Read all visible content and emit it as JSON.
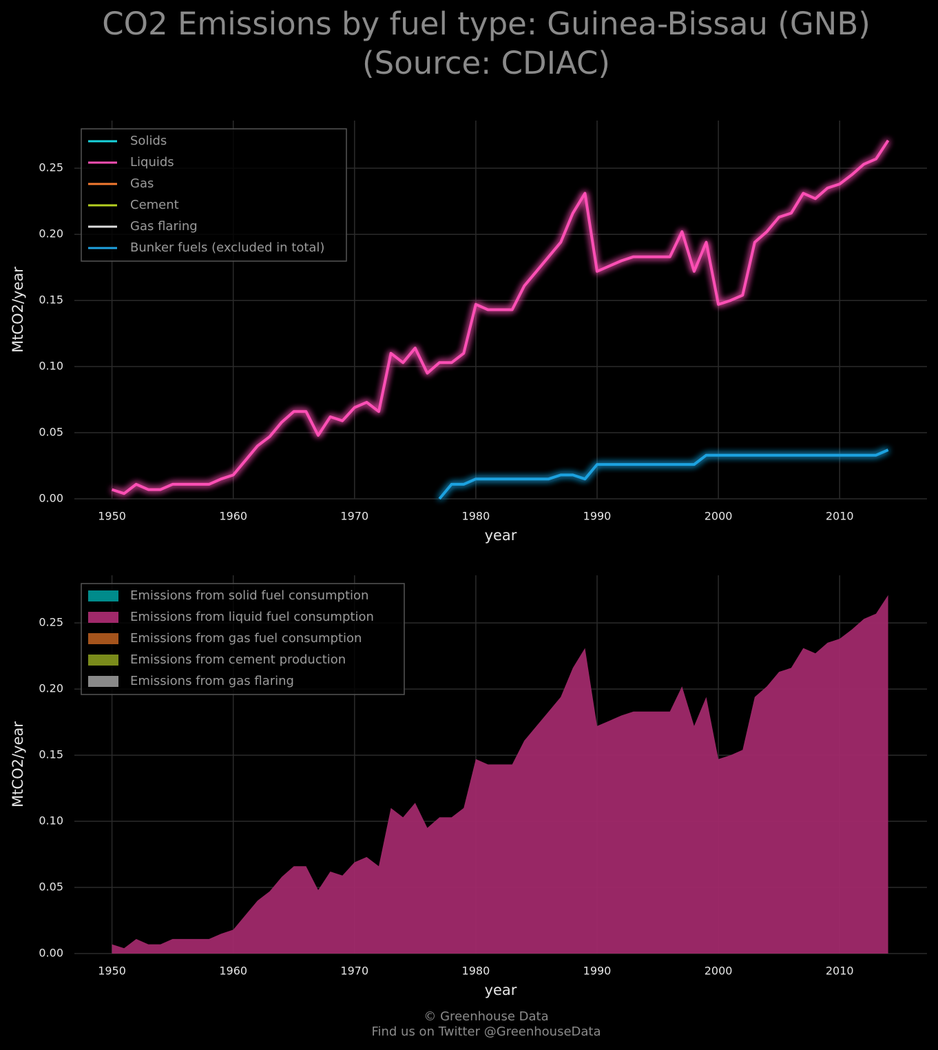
{
  "title": [
    "CO2 Emissions by fuel type: Guinea-Bissau (GNB)",
    "(Source: CDIAC)"
  ],
  "footer": [
    "© Greenhouse Data",
    "Find us on Twitter @GreenhouseData"
  ],
  "chart_data": [
    {
      "type": "line",
      "xlabel": "year",
      "ylabel": "MtCO2/year",
      "grid": true,
      "legend": "upper left",
      "xlim": [
        1946.9,
        2017.2
      ],
      "ylim": [
        0,
        0.286
      ],
      "xticks": [
        1950,
        1960,
        1970,
        1980,
        1990,
        2000,
        2010
      ],
      "yticks": [
        {
          "value": 0,
          "label": "0.00"
        },
        {
          "value": 0.05,
          "label": "0.05"
        },
        {
          "value": 0.1,
          "label": "0.10"
        },
        {
          "value": 0.15,
          "label": "0.15"
        },
        {
          "value": 0.2,
          "label": "0.20"
        },
        {
          "value": 0.25,
          "label": "0.25"
        }
      ],
      "x": [
        1950,
        1951,
        1952,
        1953,
        1954,
        1955,
        1956,
        1957,
        1958,
        1959,
        1960,
        1961,
        1962,
        1963,
        1964,
        1965,
        1966,
        1967,
        1968,
        1969,
        1970,
        1971,
        1972,
        1973,
        1974,
        1975,
        1976,
        1977,
        1978,
        1979,
        1980,
        1981,
        1982,
        1983,
        1984,
        1985,
        1986,
        1987,
        1988,
        1989,
        1990,
        1991,
        1992,
        1993,
        1994,
        1995,
        1996,
        1997,
        1998,
        1999,
        2000,
        2001,
        2002,
        2003,
        2004,
        2005,
        2006,
        2007,
        2008,
        2009,
        2010,
        2011,
        2012,
        2013,
        2014
      ],
      "series": [
        {
          "name": "Solids",
          "color": "#19d3dc",
          "values": [
            0,
            0,
            0,
            0,
            0,
            0,
            0,
            0,
            0,
            0,
            0,
            0,
            0,
            0,
            0,
            0,
            0,
            0,
            0,
            0,
            0,
            0,
            0,
            0,
            0,
            0,
            0,
            0,
            0,
            0,
            0,
            0,
            0,
            0,
            0,
            0,
            0,
            0,
            0,
            0,
            0,
            0,
            0,
            0,
            0,
            0,
            0,
            0,
            0,
            0,
            0,
            0,
            0,
            0,
            0,
            0,
            0,
            0,
            0,
            0,
            0,
            0,
            0,
            0,
            0
          ]
        },
        {
          "name": "Liquids",
          "color": "#ff4fb5",
          "values": [
            0.007,
            0.004,
            0.011,
            0.007,
            0.007,
            0.011,
            0.011,
            0.011,
            0.011,
            0.015,
            0.018,
            0.029,
            0.04,
            0.047,
            0.058,
            0.066,
            0.066,
            0.048,
            0.062,
            0.059,
            0.069,
            0.073,
            0.066,
            0.11,
            0.103,
            0.114,
            0.095,
            0.103,
            0.103,
            0.11,
            0.147,
            0.143,
            0.143,
            0.143,
            0.161,
            0.172,
            0.183,
            0.194,
            0.216,
            0.231,
            0.172,
            0.176,
            0.18,
            0.183,
            0.183,
            0.183,
            0.183,
            0.202,
            0.172,
            0.194,
            0.147,
            0.15,
            0.154,
            0.194,
            0.202,
            0.213,
            0.216,
            0.231,
            0.227,
            0.235,
            0.238,
            0.245,
            0.253,
            0.257,
            0.271
          ]
        },
        {
          "name": "Gas",
          "color": "#f47a30",
          "values": [
            0,
            0,
            0,
            0,
            0,
            0,
            0,
            0,
            0,
            0,
            0,
            0,
            0,
            0,
            0,
            0,
            0,
            0,
            0,
            0,
            0,
            0,
            0,
            0,
            0,
            0,
            0,
            0,
            0,
            0,
            0,
            0,
            0,
            0,
            0,
            0,
            0,
            0,
            0,
            0,
            0,
            0,
            0,
            0,
            0,
            0,
            0,
            0,
            0,
            0,
            0,
            0,
            0,
            0,
            0,
            0,
            0,
            0,
            0,
            0,
            0,
            0,
            0,
            0,
            0
          ]
        },
        {
          "name": "Cement",
          "color": "#b5cf20",
          "values": [
            0,
            0,
            0,
            0,
            0,
            0,
            0,
            0,
            0,
            0,
            0,
            0,
            0,
            0,
            0,
            0,
            0,
            0,
            0,
            0,
            0,
            0,
            0,
            0,
            0,
            0,
            0,
            0,
            0,
            0,
            0,
            0,
            0,
            0,
            0,
            0,
            0,
            0,
            0,
            0,
            0,
            0,
            0,
            0,
            0,
            0,
            0,
            0,
            0,
            0,
            0,
            0,
            0,
            0,
            0,
            0,
            0,
            0,
            0,
            0,
            0,
            0,
            0,
            0,
            0
          ]
        },
        {
          "name": "Gas flaring",
          "color": "#dddddd",
          "values": [
            0,
            0,
            0,
            0,
            0,
            0,
            0,
            0,
            0,
            0,
            0,
            0,
            0,
            0,
            0,
            0,
            0,
            0,
            0,
            0,
            0,
            0,
            0,
            0,
            0,
            0,
            0,
            0,
            0,
            0,
            0,
            0,
            0,
            0,
            0,
            0,
            0,
            0,
            0,
            0,
            0,
            0,
            0,
            0,
            0,
            0,
            0,
            0,
            0,
            0,
            0,
            0,
            0,
            0,
            0,
            0,
            0,
            0,
            0,
            0,
            0,
            0,
            0,
            0,
            0
          ]
        },
        {
          "name": "Bunker fuels (excluded in total)",
          "color": "#1fa2e0",
          "values": [
            null,
            null,
            null,
            null,
            null,
            null,
            null,
            null,
            null,
            null,
            null,
            null,
            null,
            null,
            null,
            null,
            null,
            null,
            null,
            null,
            null,
            null,
            null,
            null,
            null,
            null,
            null,
            0,
            0.011,
            0.011,
            0.015,
            0.015,
            0.015,
            0.015,
            0.015,
            0.015,
            0.015,
            0.018,
            0.018,
            0.015,
            0.026,
            0.026,
            0.026,
            0.026,
            0.026,
            0.026,
            0.026,
            0.026,
            0.026,
            0.033,
            0.033,
            0.033,
            0.033,
            0.033,
            0.033,
            0.033,
            0.033,
            0.033,
            0.033,
            0.033,
            0.033,
            0.033,
            0.033,
            0.033,
            0.037
          ]
        }
      ]
    },
    {
      "type": "area",
      "xlabel": "year",
      "ylabel": "MtCO2/year",
      "grid": true,
      "legend": "upper left",
      "stacked": true,
      "xlim": [
        1946.9,
        2017.2
      ],
      "ylim": [
        0,
        0.286
      ],
      "xticks": [
        1950,
        1960,
        1970,
        1980,
        1990,
        2000,
        2010
      ],
      "yticks": [
        {
          "value": 0,
          "label": "0.00"
        },
        {
          "value": 0.05,
          "label": "0.05"
        },
        {
          "value": 0.1,
          "label": "0.10"
        },
        {
          "value": 0.15,
          "label": "0.15"
        },
        {
          "value": 0.2,
          "label": "0.20"
        },
        {
          "value": 0.25,
          "label": "0.25"
        }
      ],
      "x": [
        1950,
        1951,
        1952,
        1953,
        1954,
        1955,
        1956,
        1957,
        1958,
        1959,
        1960,
        1961,
        1962,
        1963,
        1964,
        1965,
        1966,
        1967,
        1968,
        1969,
        1970,
        1971,
        1972,
        1973,
        1974,
        1975,
        1976,
        1977,
        1978,
        1979,
        1980,
        1981,
        1982,
        1983,
        1984,
        1985,
        1986,
        1987,
        1988,
        1989,
        1990,
        1991,
        1992,
        1993,
        1994,
        1995,
        1996,
        1997,
        1998,
        1999,
        2000,
        2001,
        2002,
        2003,
        2004,
        2005,
        2006,
        2007,
        2008,
        2009,
        2010,
        2011,
        2012,
        2013,
        2014
      ],
      "series": [
        {
          "name": "Emissions from solid fuel consumption",
          "color": "#008b8b",
          "values": [
            0,
            0,
            0,
            0,
            0,
            0,
            0,
            0,
            0,
            0,
            0,
            0,
            0,
            0,
            0,
            0,
            0,
            0,
            0,
            0,
            0,
            0,
            0,
            0,
            0,
            0,
            0,
            0,
            0,
            0,
            0,
            0,
            0,
            0,
            0,
            0,
            0,
            0,
            0,
            0,
            0,
            0,
            0,
            0,
            0,
            0,
            0,
            0,
            0,
            0,
            0,
            0,
            0,
            0,
            0,
            0,
            0,
            0,
            0,
            0,
            0,
            0,
            0,
            0,
            0
          ]
        },
        {
          "name": "Emissions from liquid fuel consumption",
          "color": "#a0296a",
          "values": [
            0.007,
            0.004,
            0.011,
            0.007,
            0.007,
            0.011,
            0.011,
            0.011,
            0.011,
            0.015,
            0.018,
            0.029,
            0.04,
            0.047,
            0.058,
            0.066,
            0.066,
            0.048,
            0.062,
            0.059,
            0.069,
            0.073,
            0.066,
            0.11,
            0.103,
            0.114,
            0.095,
            0.103,
            0.103,
            0.11,
            0.147,
            0.143,
            0.143,
            0.143,
            0.161,
            0.172,
            0.183,
            0.194,
            0.216,
            0.231,
            0.172,
            0.176,
            0.18,
            0.183,
            0.183,
            0.183,
            0.183,
            0.202,
            0.172,
            0.194,
            0.147,
            0.15,
            0.154,
            0.194,
            0.202,
            0.213,
            0.216,
            0.231,
            0.227,
            0.235,
            0.238,
            0.245,
            0.253,
            0.257,
            0.271
          ]
        },
        {
          "name": "Emissions from gas fuel consumption",
          "color": "#a5541c",
          "values": [
            0,
            0,
            0,
            0,
            0,
            0,
            0,
            0,
            0,
            0,
            0,
            0,
            0,
            0,
            0,
            0,
            0,
            0,
            0,
            0,
            0,
            0,
            0,
            0,
            0,
            0,
            0,
            0,
            0,
            0,
            0,
            0,
            0,
            0,
            0,
            0,
            0,
            0,
            0,
            0,
            0,
            0,
            0,
            0,
            0,
            0,
            0,
            0,
            0,
            0,
            0,
            0,
            0,
            0,
            0,
            0,
            0,
            0,
            0,
            0,
            0,
            0,
            0,
            0,
            0
          ]
        },
        {
          "name": "Emissions from cement production",
          "color": "#7a8b1b",
          "values": [
            0,
            0,
            0,
            0,
            0,
            0,
            0,
            0,
            0,
            0,
            0,
            0,
            0,
            0,
            0,
            0,
            0,
            0,
            0,
            0,
            0,
            0,
            0,
            0,
            0,
            0,
            0,
            0,
            0,
            0,
            0,
            0,
            0,
            0,
            0,
            0,
            0,
            0,
            0,
            0,
            0,
            0,
            0,
            0,
            0,
            0,
            0,
            0,
            0,
            0,
            0,
            0,
            0,
            0,
            0,
            0,
            0,
            0,
            0,
            0,
            0,
            0,
            0,
            0,
            0
          ]
        },
        {
          "name": "Emissions from gas flaring",
          "color": "#8a8a8a",
          "values": [
            0,
            0,
            0,
            0,
            0,
            0,
            0,
            0,
            0,
            0,
            0,
            0,
            0,
            0,
            0,
            0,
            0,
            0,
            0,
            0,
            0,
            0,
            0,
            0,
            0,
            0,
            0,
            0,
            0,
            0,
            0,
            0,
            0,
            0,
            0,
            0,
            0,
            0,
            0,
            0,
            0,
            0,
            0,
            0,
            0,
            0,
            0,
            0,
            0,
            0,
            0,
            0,
            0,
            0,
            0,
            0,
            0,
            0,
            0,
            0,
            0,
            0,
            0,
            0,
            0
          ]
        }
      ]
    }
  ]
}
